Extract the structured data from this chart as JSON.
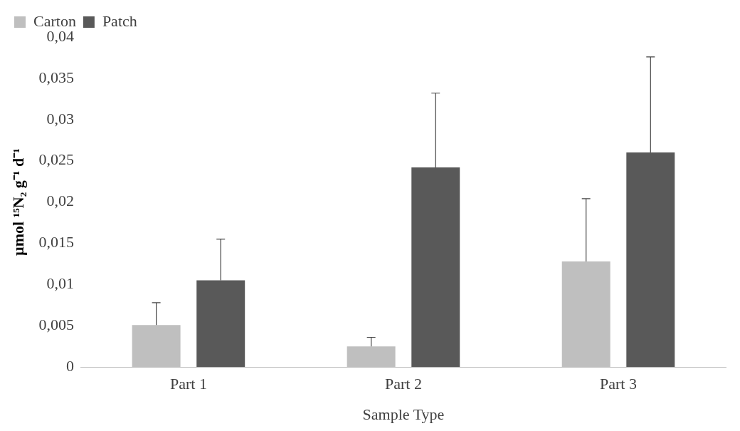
{
  "chart_data": {
    "type": "bar",
    "xlabel": "Sample Type",
    "ylabel": "µmol ¹⁵N₂ g⁻¹ d⁻¹",
    "categories": [
      "Part 1",
      "Part 2",
      "Part 3"
    ],
    "series": [
      {
        "name": "Carton",
        "color": "#bfbfbf",
        "values": [
          0.0051,
          0.0025,
          0.0128
        ],
        "errors": [
          [
            0.0051,
            0.0078
          ],
          [
            0.0025,
            0.0036
          ],
          [
            0.0128,
            0.0204
          ]
        ]
      },
      {
        "name": "Patch",
        "color": "#595959",
        "values": [
          0.0105,
          0.0242,
          0.026
        ],
        "errors": [
          [
            0.0105,
            0.0155
          ],
          [
            0.0242,
            0.0332
          ],
          [
            0.026,
            0.0376
          ]
        ]
      }
    ],
    "ylim": [
      0,
      0.04
    ],
    "yticks": [
      0,
      {
        "value": 0.005,
        "label": "0,005"
      },
      {
        "value": 0.01,
        "label": "0,01"
      },
      {
        "value": 0.015,
        "label": "0,015"
      },
      {
        "value": 0.02,
        "label": "0,02"
      },
      {
        "value": 0.025,
        "label": "0,025"
      },
      {
        "value": 0.03,
        "label": "0,03"
      },
      {
        "value": 0.035,
        "label": "0,035"
      },
      {
        "value": 0.04,
        "label": "0,04"
      }
    ],
    "grid": false,
    "legend": "top left"
  }
}
